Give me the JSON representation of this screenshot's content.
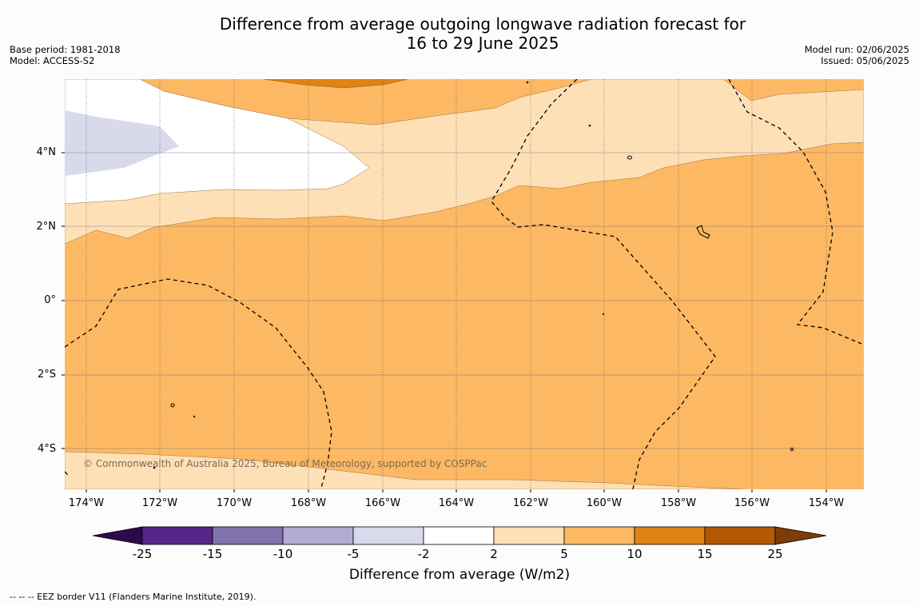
{
  "title_line1": "Difference from average outgoing longwave radiation forecast for",
  "title_line2": "16 to 29 June 2025",
  "base_period": "Base period: 1981-2018",
  "model": "Model: ACCESS-S2",
  "model_run": "Model run: 02/06/2025",
  "issued": "Issued: 05/06/2025",
  "lat_labels": [
    "4°N",
    "2°N",
    "0°",
    "2°S",
    "4°S"
  ],
  "lon_labels": [
    "174°W",
    "172°W",
    "170°W",
    "168°W",
    "166°W",
    "164°W",
    "162°W",
    "160°W",
    "158°W",
    "156°W",
    "154°W"
  ],
  "copyright": "© Commonwealth of Australia 2025, Bureau of Meteorology, supported by COSPPac",
  "colorbar": {
    "ticks": [
      "-25",
      "-15",
      "-10",
      "-5",
      "-2",
      "2",
      "5",
      "10",
      "15",
      "25"
    ],
    "colors": [
      "#2d0a4e",
      "#542788",
      "#8073ac",
      "#b2abd2",
      "#d8daeb",
      "#ffffff",
      "#fee0b6",
      "#fdb863",
      "#e08214",
      "#b35806",
      "#7f3b08"
    ],
    "label": "Difference from average (W/m2)"
  },
  "footnote": "--  --  -- EEZ border V11 (Flanders Marine Institute, 2019)."
}
